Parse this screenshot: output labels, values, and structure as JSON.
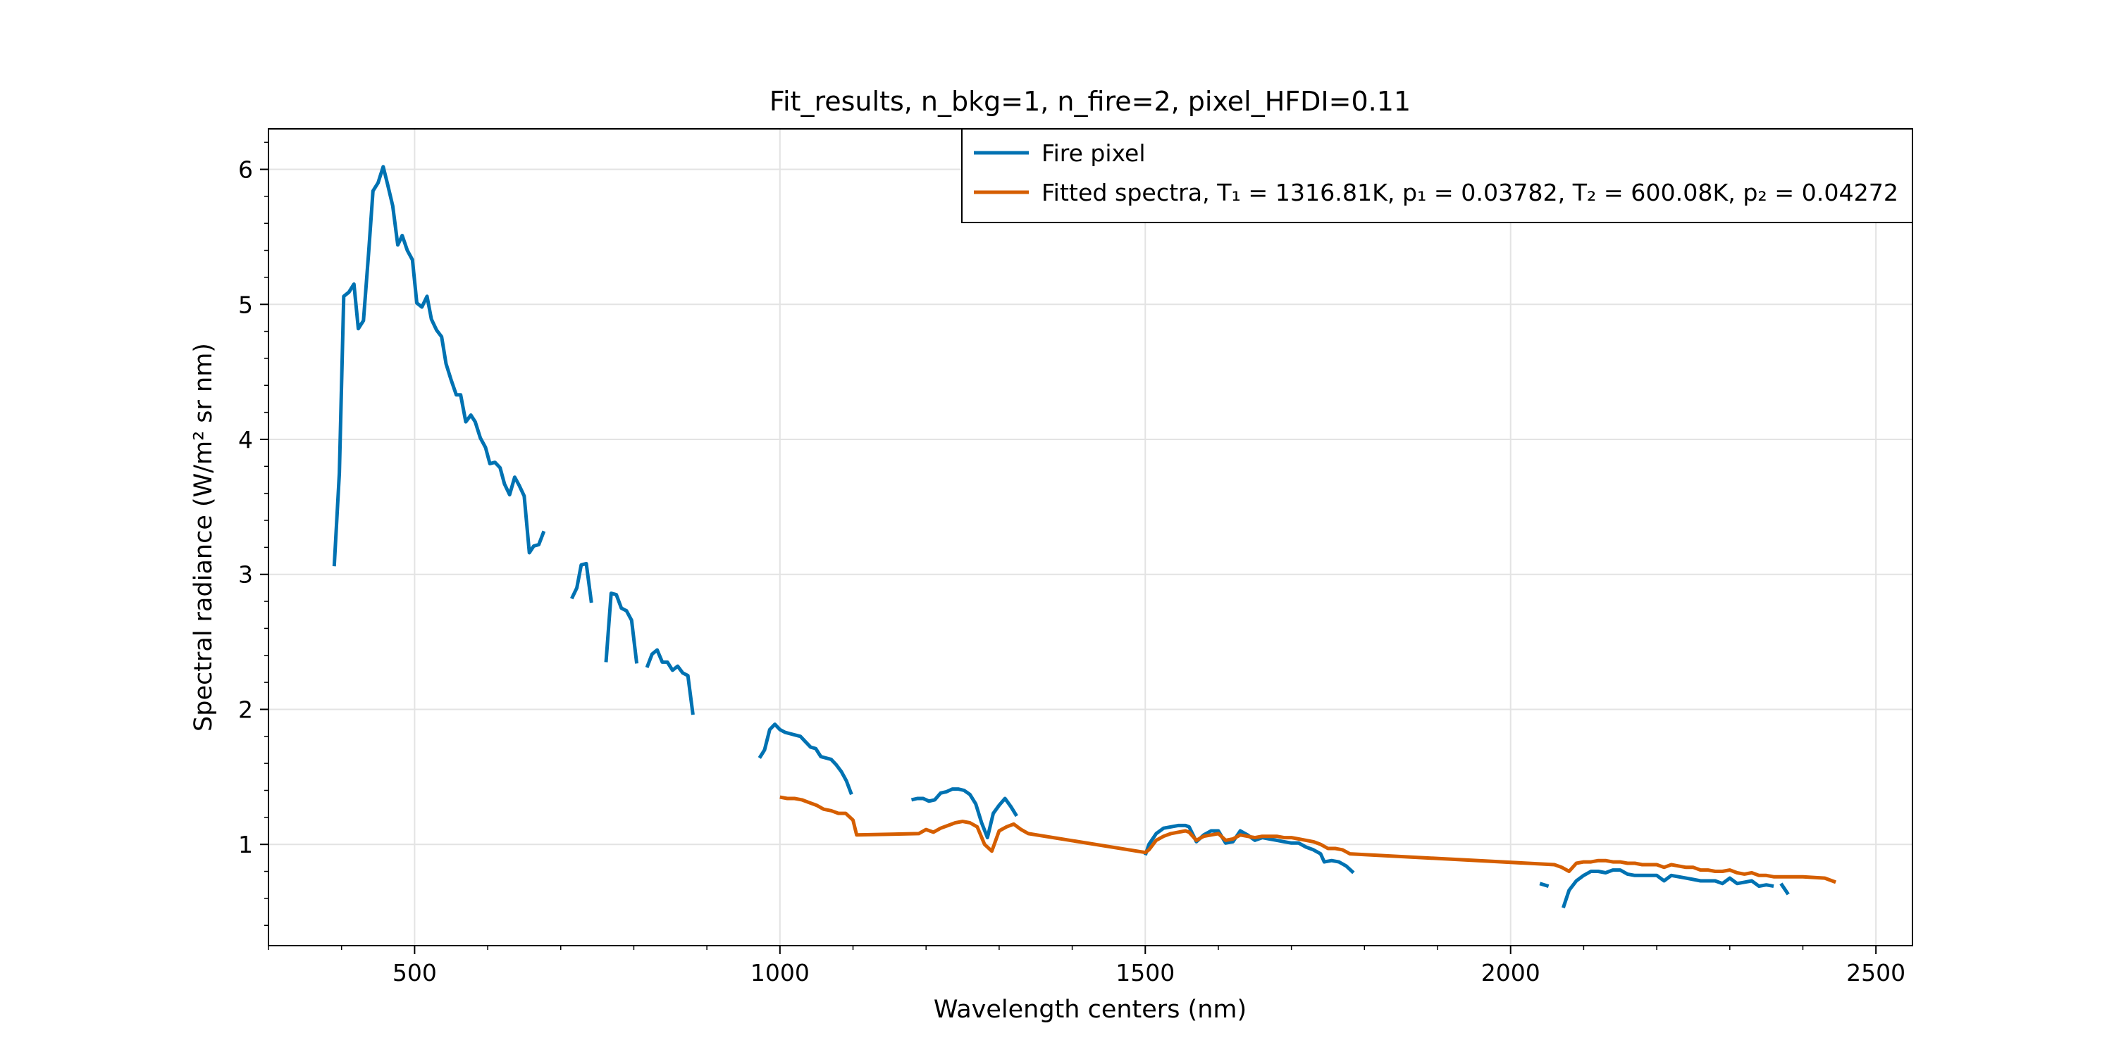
{
  "chart_data": {
    "type": "line",
    "title": "Fit_results, n_bkg=1, n_fire=2, pixel_HFDI=0.11",
    "xlabel": "Wavelength centers (nm)",
    "ylabel": "Spectral radiance (W/m² sr nm)",
    "xlim": [
      300,
      2550
    ],
    "ylim": [
      0.25,
      6.3
    ],
    "xticks": [
      500,
      1000,
      1500,
      2000,
      2500
    ],
    "xtick_labels": [
      "500",
      "1000",
      "1500",
      "2000",
      "2500"
    ],
    "yticks": [
      1,
      2,
      3,
      4,
      5,
      6
    ],
    "ytick_labels": [
      "1",
      "2",
      "3",
      "4",
      "5",
      "6"
    ],
    "grid": true,
    "legend_position": "top-right",
    "series": [
      {
        "name": "Fire pixel",
        "color": "#0072b2",
        "segments": [
          [
            [
              390,
              3.06
            ],
            [
              397,
              3.75
            ],
            [
              403,
              5.06
            ],
            [
              410,
              5.09
            ],
            [
              417,
              5.15
            ],
            [
              423,
              4.82
            ],
            [
              430,
              4.88
            ],
            [
              437,
              5.38
            ],
            [
              443,
              5.84
            ],
            [
              450,
              5.9
            ],
            [
              457,
              6.02
            ],
            [
              463,
              5.89
            ],
            [
              470,
              5.73
            ],
            [
              477,
              5.44
            ],
            [
              483,
              5.51
            ],
            [
              490,
              5.4
            ],
            [
              497,
              5.33
            ],
            [
              503,
              5.01
            ],
            [
              510,
              4.98
            ],
            [
              517,
              5.06
            ],
            [
              523,
              4.89
            ],
            [
              530,
              4.81
            ],
            [
              537,
              4.76
            ],
            [
              543,
              4.56
            ],
            [
              550,
              4.44
            ],
            [
              557,
              4.33
            ],
            [
              563,
              4.33
            ],
            [
              570,
              4.13
            ],
            [
              577,
              4.18
            ],
            [
              583,
              4.13
            ],
            [
              590,
              4.01
            ],
            [
              597,
              3.94
            ],
            [
              603,
              3.82
            ],
            [
              610,
              3.83
            ],
            [
              617,
              3.79
            ],
            [
              623,
              3.67
            ],
            [
              630,
              3.59
            ],
            [
              637,
              3.72
            ],
            [
              643,
              3.66
            ],
            [
              650,
              3.58
            ],
            [
              657,
              3.16
            ],
            [
              663,
              3.21
            ],
            [
              670,
              3.22
            ],
            [
              677,
              3.32
            ]
          ],
          [
            [
              715,
              2.82
            ],
            [
              722,
              2.9
            ],
            [
              728,
              3.07
            ],
            [
              735,
              3.08
            ],
            [
              742,
              2.79
            ]
          ],
          [
            [
              762,
              2.35
            ],
            [
              769,
              2.86
            ],
            [
              776,
              2.85
            ],
            [
              783,
              2.75
            ],
            [
              790,
              2.73
            ],
            [
              797,
              2.66
            ],
            [
              804,
              2.34
            ]
          ],
          [
            [
              818,
              2.31
            ],
            [
              825,
              2.41
            ],
            [
              832,
              2.44
            ],
            [
              839,
              2.35
            ],
            [
              846,
              2.35
            ],
            [
              853,
              2.29
            ],
            [
              860,
              2.32
            ],
            [
              867,
              2.27
            ],
            [
              874,
              2.25
            ],
            [
              881,
              1.96
            ]
          ]
        ]
      },
      {
        "name": "Fire pixel",
        "color": "#0072b2",
        "segments": [
          [
            [
              972,
              1.64
            ],
            [
              979,
              1.7
            ],
            [
              986,
              1.85
            ],
            [
              993,
              1.89
            ],
            [
              1000,
              1.85
            ],
            [
              1007,
              1.83
            ],
            [
              1014,
              1.82
            ],
            [
              1021,
              1.81
            ],
            [
              1028,
              1.8
            ],
            [
              1035,
              1.76
            ],
            [
              1042,
              1.72
            ],
            [
              1049,
              1.71
            ],
            [
              1056,
              1.65
            ],
            [
              1063,
              1.64
            ],
            [
              1070,
              1.63
            ],
            [
              1077,
              1.59
            ],
            [
              1084,
              1.54
            ],
            [
              1091,
              1.47
            ],
            [
              1098,
              1.37
            ]
          ],
          [
            [
              1180,
              1.33
            ],
            [
              1188,
              1.34
            ],
            [
              1196,
              1.34
            ],
            [
              1204,
              1.32
            ],
            [
              1212,
              1.33
            ],
            [
              1220,
              1.38
            ],
            [
              1228,
              1.39
            ],
            [
              1236,
              1.41
            ],
            [
              1244,
              1.41
            ],
            [
              1252,
              1.4
            ],
            [
              1260,
              1.37
            ],
            [
              1268,
              1.3
            ],
            [
              1276,
              1.16
            ],
            [
              1284,
              1.05
            ],
            [
              1292,
              1.23
            ],
            [
              1300,
              1.29
            ],
            [
              1308,
              1.34
            ],
            [
              1316,
              1.28
            ],
            [
              1324,
              1.21
            ]
          ],
          [
            [
              1500,
              0.92
            ],
            [
              1505,
              1.0
            ],
            [
              1515,
              1.08
            ],
            [
              1525,
              1.12
            ],
            [
              1535,
              1.13
            ],
            [
              1545,
              1.14
            ],
            [
              1555,
              1.14
            ],
            [
              1560,
              1.13
            ],
            [
              1570,
              1.02
            ],
            [
              1580,
              1.07
            ],
            [
              1590,
              1.1
            ],
            [
              1600,
              1.1
            ],
            [
              1610,
              1.01
            ],
            [
              1620,
              1.02
            ],
            [
              1630,
              1.1
            ],
            [
              1640,
              1.07
            ],
            [
              1650,
              1.03
            ],
            [
              1660,
              1.05
            ],
            [
              1670,
              1.04
            ],
            [
              1680,
              1.03
            ],
            [
              1690,
              1.02
            ],
            [
              1700,
              1.01
            ],
            [
              1710,
              1.01
            ],
            [
              1720,
              0.98
            ],
            [
              1730,
              0.96
            ],
            [
              1740,
              0.93
            ],
            [
              1745,
              0.87
            ],
            [
              1755,
              0.88
            ],
            [
              1765,
              0.87
            ],
            [
              1775,
              0.84
            ],
            [
              1785,
              0.79
            ]
          ],
          [
            [
              2040,
              0.71
            ],
            [
              2052,
              0.69
            ]
          ],
          [
            [
              2072,
              0.53
            ],
            [
              2080,
              0.66
            ],
            [
              2090,
              0.73
            ],
            [
              2100,
              0.77
            ],
            [
              2110,
              0.8
            ],
            [
              2120,
              0.8
            ],
            [
              2130,
              0.79
            ],
            [
              2140,
              0.81
            ],
            [
              2150,
              0.81
            ],
            [
              2160,
              0.78
            ],
            [
              2170,
              0.77
            ],
            [
              2180,
              0.77
            ],
            [
              2190,
              0.77
            ],
            [
              2200,
              0.77
            ],
            [
              2210,
              0.73
            ],
            [
              2220,
              0.77
            ],
            [
              2230,
              0.76
            ],
            [
              2240,
              0.75
            ],
            [
              2250,
              0.74
            ],
            [
              2260,
              0.73
            ],
            [
              2270,
              0.73
            ],
            [
              2280,
              0.73
            ],
            [
              2290,
              0.71
            ],
            [
              2300,
              0.75
            ],
            [
              2310,
              0.71
            ],
            [
              2320,
              0.72
            ],
            [
              2330,
              0.73
            ],
            [
              2340,
              0.69
            ],
            [
              2350,
              0.7
            ],
            [
              2360,
              0.69
            ]
          ],
          [
            [
              2370,
              0.71
            ],
            [
              2380,
              0.63
            ]
          ]
        ]
      },
      {
        "name": "Fitted spectra",
        "color": "#d55e00",
        "segments": [
          [
            [
              1000,
              1.35
            ],
            [
              1010,
              1.34
            ],
            [
              1020,
              1.34
            ],
            [
              1030,
              1.33
            ],
            [
              1040,
              1.31
            ],
            [
              1050,
              1.29
            ],
            [
              1060,
              1.26
            ],
            [
              1070,
              1.25
            ],
            [
              1080,
              1.23
            ],
            [
              1090,
              1.23
            ],
            [
              1100,
              1.18
            ],
            [
              1105,
              1.07
            ],
            [
              1190,
              1.08
            ],
            [
              1200,
              1.11
            ],
            [
              1210,
              1.09
            ],
            [
              1220,
              1.12
            ],
            [
              1230,
              1.14
            ],
            [
              1240,
              1.16
            ],
            [
              1250,
              1.17
            ],
            [
              1260,
              1.16
            ],
            [
              1270,
              1.13
            ],
            [
              1280,
              1.0
            ],
            [
              1290,
              0.95
            ],
            [
              1300,
              1.1
            ],
            [
              1310,
              1.13
            ],
            [
              1320,
              1.15
            ],
            [
              1330,
              1.11
            ],
            [
              1340,
              1.08
            ],
            [
              1500,
              0.94
            ],
            [
              1505,
              0.96
            ],
            [
              1515,
              1.03
            ],
            [
              1525,
              1.06
            ],
            [
              1535,
              1.08
            ],
            [
              1545,
              1.09
            ],
            [
              1555,
              1.1
            ],
            [
              1560,
              1.09
            ],
            [
              1570,
              1.03
            ],
            [
              1580,
              1.06
            ],
            [
              1590,
              1.07
            ],
            [
              1600,
              1.08
            ],
            [
              1610,
              1.03
            ],
            [
              1620,
              1.04
            ],
            [
              1630,
              1.07
            ],
            [
              1640,
              1.06
            ],
            [
              1650,
              1.05
            ],
            [
              1660,
              1.06
            ],
            [
              1670,
              1.06
            ],
            [
              1680,
              1.06
            ],
            [
              1690,
              1.05
            ],
            [
              1700,
              1.05
            ],
            [
              1710,
              1.04
            ],
            [
              1720,
              1.03
            ],
            [
              1730,
              1.02
            ],
            [
              1740,
              1.0
            ],
            [
              1750,
              0.97
            ],
            [
              1760,
              0.97
            ],
            [
              1770,
              0.96
            ],
            [
              1780,
              0.93
            ],
            [
              2060,
              0.85
            ],
            [
              2070,
              0.83
            ],
            [
              2080,
              0.8
            ],
            [
              2090,
              0.86
            ],
            [
              2100,
              0.87
            ],
            [
              2110,
              0.87
            ],
            [
              2120,
              0.88
            ],
            [
              2130,
              0.88
            ],
            [
              2140,
              0.87
            ],
            [
              2150,
              0.87
            ],
            [
              2160,
              0.86
            ],
            [
              2170,
              0.86
            ],
            [
              2180,
              0.85
            ],
            [
              2190,
              0.85
            ],
            [
              2200,
              0.85
            ],
            [
              2210,
              0.83
            ],
            [
              2220,
              0.85
            ],
            [
              2230,
              0.84
            ],
            [
              2240,
              0.83
            ],
            [
              2250,
              0.83
            ],
            [
              2260,
              0.81
            ],
            [
              2270,
              0.81
            ],
            [
              2280,
              0.8
            ],
            [
              2290,
              0.8
            ],
            [
              2300,
              0.81
            ],
            [
              2310,
              0.79
            ],
            [
              2320,
              0.78
            ],
            [
              2330,
              0.79
            ],
            [
              2340,
              0.77
            ],
            [
              2350,
              0.77
            ],
            [
              2360,
              0.76
            ],
            [
              2400,
              0.76
            ],
            [
              2430,
              0.75
            ],
            [
              2445,
              0.72
            ]
          ]
        ]
      }
    ],
    "legend": [
      {
        "label": "Fire pixel",
        "color": "#0072b2"
      },
      {
        "label": "Fitted spectra, T₁ =  1316.81K, p₁ =  0.03782, T₂ =  600.08K, p₂ =  0.04272",
        "color": "#d55e00"
      }
    ]
  }
}
